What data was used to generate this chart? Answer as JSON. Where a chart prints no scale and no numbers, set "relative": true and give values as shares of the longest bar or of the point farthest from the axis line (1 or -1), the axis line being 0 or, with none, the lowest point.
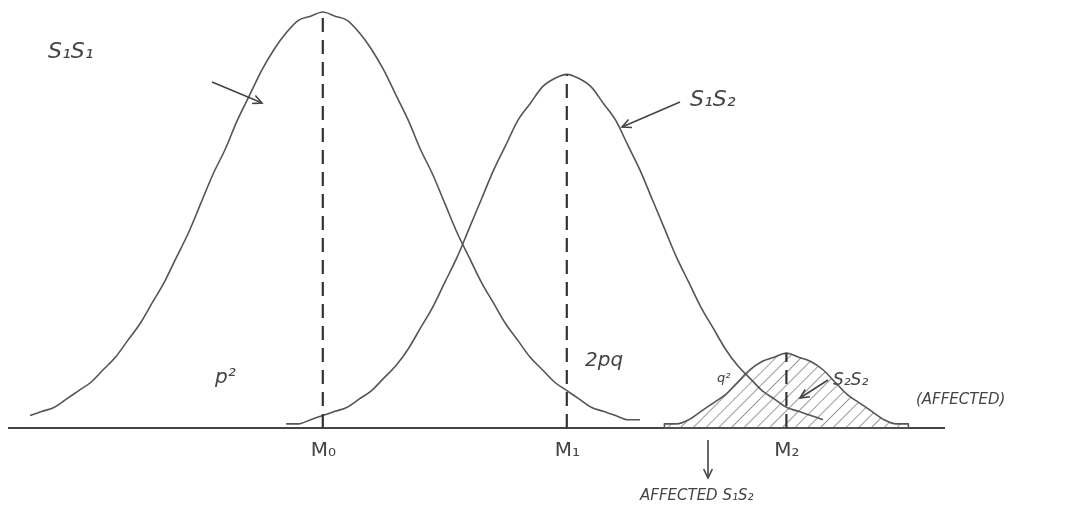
{
  "chart_data": {
    "type": "line",
    "relative": true,
    "categories": [
      null,
      null,
      null,
      null,
      null,
      null,
      null,
      null,
      null,
      null,
      null,
      null,
      null,
      null,
      null,
      null,
      null,
      null,
      null,
      null,
      null,
      null,
      null,
      null,
      "M₀",
      null,
      null,
      null,
      null,
      null,
      null,
      null,
      null,
      null,
      null,
      null,
      null,
      null,
      null,
      null,
      null,
      null,
      null,
      null,
      "M₁",
      null,
      null,
      null,
      null,
      null,
      null,
      null,
      null,
      null,
      null,
      null,
      null,
      null,
      null,
      null,
      null,
      null,
      "M₂",
      null,
      null,
      null,
      null,
      null,
      null,
      null,
      null,
      null,
      null,
      null
    ],
    "series": [
      {
        "color": "#555555",
        "values": [
          0.03,
          0.04,
          0.05,
          0.07,
          0.09,
          0.11,
          0.14,
          0.17,
          0.21,
          0.25,
          0.3,
          0.35,
          0.41,
          0.47,
          0.54,
          0.61,
          0.67,
          0.74,
          0.8,
          0.86,
          0.91,
          0.95,
          0.98,
          0.99,
          1,
          0.99,
          0.98,
          0.95,
          0.91,
          0.86,
          0.8,
          0.74,
          0.67,
          0.61,
          0.54,
          0.47,
          0.41,
          0.35,
          0.3,
          0.25,
          0.21,
          0.17,
          0.14,
          0.11,
          0.09,
          0.07,
          0.05,
          0.04,
          0.03,
          0.02,
          0.02,
          null,
          null,
          null,
          null,
          null,
          null,
          null,
          null,
          null,
          null,
          null,
          null,
          null,
          null,
          null,
          null,
          null,
          null,
          null,
          null,
          null,
          null,
          null
        ]
      },
      {
        "color": "#555555",
        "values": [
          null,
          null,
          null,
          null,
          null,
          null,
          null,
          null,
          null,
          null,
          null,
          null,
          null,
          null,
          null,
          null,
          null,
          null,
          null,
          null,
          null,
          0.01,
          0.01,
          0.02,
          0.03,
          0.04,
          0.05,
          0.07,
          0.09,
          0.12,
          0.15,
          0.19,
          0.24,
          0.29,
          0.35,
          0.41,
          0.48,
          0.55,
          0.62,
          0.68,
          0.74,
          0.78,
          0.82,
          0.84,
          0.85,
          0.84,
          0.82,
          0.78,
          0.74,
          0.68,
          0.62,
          0.55,
          0.48,
          0.41,
          0.35,
          0.29,
          0.24,
          0.19,
          0.15,
          0.12,
          0.09,
          0.07,
          0.05,
          0.04,
          0.03,
          0.02,
          null,
          null,
          null,
          null,
          null,
          null,
          null,
          null
        ]
      },
      {
        "type": "area",
        "color": "#555555",
        "values": [
          null,
          null,
          null,
          null,
          null,
          null,
          null,
          null,
          null,
          null,
          null,
          null,
          null,
          null,
          null,
          null,
          null,
          null,
          null,
          null,
          null,
          null,
          null,
          null,
          null,
          null,
          null,
          null,
          null,
          null,
          null,
          null,
          null,
          null,
          null,
          null,
          null,
          null,
          null,
          null,
          null,
          null,
          null,
          null,
          null,
          null,
          null,
          null,
          null,
          null,
          null,
          null,
          0.01,
          0.01,
          0.02,
          0.04,
          0.06,
          0.08,
          0.11,
          0.14,
          0.16,
          0.17,
          0.18,
          0.17,
          0.16,
          0.14,
          0.11,
          0.08,
          0.06,
          0.04,
          0.02,
          0.01,
          0.01,
          null
        ]
      }
    ],
    "ref_lines": [
      {
        "axis": "x",
        "value": "M₀",
        "line_style": "dashed"
      },
      {
        "axis": "x",
        "value": "M₁",
        "line_style": "dashed"
      },
      {
        "axis": "x",
        "value": "M₂",
        "line_style": "dashed"
      }
    ],
    "annotations": [
      "S₁S₁",
      "S₁S₂",
      "p²",
      "2pq",
      "q²",
      "S₂S₂",
      "(AFFECTED)",
      "AFFECTED S₁S₂"
    ]
  }
}
